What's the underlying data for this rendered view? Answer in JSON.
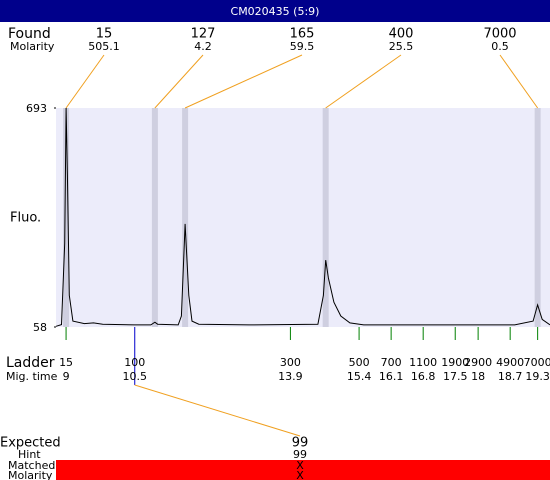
{
  "header": {
    "title": "CM020435 (5:9)"
  },
  "chart_data": {
    "type": "line",
    "ylabel": "Fluo.",
    "ylim": [
      58,
      693
    ],
    "yticks": [
      58,
      693
    ],
    "xlim": [
      8.78,
      19.57
    ],
    "x": [
      8.78,
      8.9,
      8.97,
      9.0,
      9.03,
      9.07,
      9.15,
      9.4,
      9.6,
      9.8,
      10.5,
      10.85,
      10.94,
      11.0,
      11.45,
      11.52,
      11.6,
      11.68,
      11.75,
      11.9,
      13.0,
      14.5,
      14.62,
      14.67,
      14.73,
      14.85,
      15.0,
      15.2,
      15.5,
      17.0,
      18.8,
      19.2,
      19.3,
      19.4,
      19.57
    ],
    "values": [
      60,
      65,
      300,
      693,
      500,
      150,
      75,
      68,
      70,
      66,
      64,
      64,
      72,
      66,
      64,
      90,
      357,
      150,
      75,
      66,
      64,
      66,
      150,
      252,
      200,
      130,
      90,
      70,
      64,
      64,
      64,
      75,
      122,
      80,
      64
    ],
    "color": "#000000",
    "found": {
      "label": "Found",
      "sublabel": "Molarity",
      "sizes": [
        15,
        127,
        165,
        400,
        7000
      ],
      "molarity": [
        505.1,
        4.2,
        59.5,
        25.5,
        0.5
      ],
      "times": [
        9.0,
        10.94,
        11.6,
        14.67,
        19.3
      ]
    },
    "ladder": {
      "label": "Ladder",
      "sublabel": "Mig. time",
      "sizes": [
        15,
        100,
        300,
        500,
        700,
        1100,
        1900,
        2900,
        4900,
        7000
      ],
      "times": [
        9,
        10.5,
        13.9,
        15.4,
        16.1,
        16.8,
        17.5,
        18,
        18.7,
        19.3
      ]
    },
    "expected": {
      "label": "Expected",
      "value": 99,
      "hint_label": "Hint",
      "hint": 99,
      "matched_label": "Matched",
      "matched": "X",
      "molarity_label": "Molarity",
      "molarity": "X"
    }
  }
}
